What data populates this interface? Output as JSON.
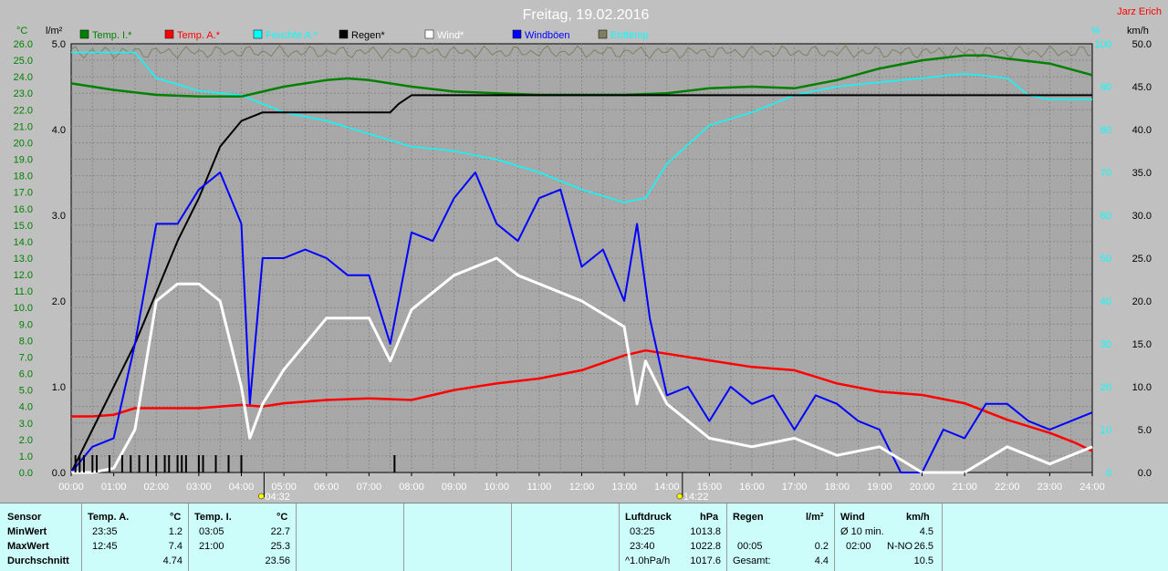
{
  "title": "Freitag, 19.02.2016",
  "author": "Jarz Erich",
  "legend": [
    {
      "label": "Temp. I.*",
      "color": "#008000"
    },
    {
      "label": "Temp. A.*",
      "color": "#ff0000"
    },
    {
      "label": "Feuchte A.*",
      "color": "#00ffff"
    },
    {
      "label": "Regen*",
      "color": "#000000"
    },
    {
      "label": "Wind*",
      "color": "#ffffff"
    },
    {
      "label": "Windböen",
      "color": "#0000ff"
    },
    {
      "label": "Erdtemp",
      "color": "#808060",
      "text_color": "#00ffff"
    }
  ],
  "axes": {
    "temp_unit": "°C",
    "rain_unit": "l/m²",
    "hum_unit": "%",
    "wind_unit": "km/h",
    "temp_ticks": [
      "0.0",
      "1.0",
      "2.0",
      "3.0",
      "4.0",
      "5.0",
      "6.0",
      "7.0",
      "8.0",
      "9.0",
      "10.0",
      "11.0",
      "12.0",
      "13.0",
      "14.0",
      "15.0",
      "16.0",
      "17.0",
      "18.0",
      "19.0",
      "20.0",
      "21.0",
      "22.0",
      "23.0",
      "24.0",
      "25.0",
      "26.0"
    ],
    "rain_ticks": [
      "0.0",
      "1.0",
      "2.0",
      "3.0",
      "4.0",
      "5.0"
    ],
    "hum_ticks": [
      "0",
      "10",
      "20",
      "30",
      "40",
      "50",
      "60",
      "70",
      "80",
      "90",
      "100"
    ],
    "wind_ticks": [
      "0.0",
      "5.0",
      "10.0",
      "15.0",
      "20.0",
      "25.0",
      "30.0",
      "35.0",
      "40.0",
      "45.0",
      "50.0"
    ],
    "x_ticks": [
      "00:00",
      "01:00",
      "02:00",
      "03:00",
      "04:00",
      "05:00",
      "06:00",
      "07:00",
      "08:00",
      "09:00",
      "10:00",
      "11:00",
      "12:00",
      "13:00",
      "14:00",
      "15:00",
      "16:00",
      "17:00",
      "18:00",
      "19:00",
      "20:00",
      "21:00",
      "22:00",
      "23:00",
      "24:00"
    ],
    "sunrise": "04:32",
    "sunset": "14:22"
  },
  "chart_data": {
    "type": "line",
    "x_unit": "hours",
    "temp_range": [
      0,
      26
    ],
    "rain_range": [
      0,
      5
    ],
    "hum_range": [
      0,
      100
    ],
    "wind_range": [
      0,
      50
    ],
    "series": [
      {
        "name": "Temp. I.*",
        "axis": "temp",
        "x": [
          0,
          0.5,
          1,
          2,
          3,
          4,
          4.5,
          5,
          6,
          6.5,
          7,
          8,
          9,
          10,
          11,
          12,
          13,
          14,
          15,
          16,
          17,
          18,
          19,
          20,
          21,
          21.5,
          22,
          23,
          24
        ],
        "y": [
          23.6,
          23.4,
          23.2,
          22.9,
          22.8,
          22.8,
          23.1,
          23.4,
          23.8,
          23.9,
          23.8,
          23.4,
          23.1,
          23.0,
          22.9,
          22.9,
          22.9,
          23.0,
          23.3,
          23.4,
          23.3,
          23.8,
          24.5,
          25.0,
          25.3,
          25.3,
          25.1,
          24.8,
          24.1
        ]
      },
      {
        "name": "Temp. A.*",
        "axis": "temp",
        "x": [
          0,
          0.5,
          1,
          1.5,
          2,
          3,
          4,
          4.5,
          5,
          6,
          7,
          8,
          9,
          10,
          11,
          12,
          13,
          13.5,
          14,
          15,
          16,
          17,
          18,
          19,
          20,
          21,
          22,
          23,
          23.6,
          24
        ],
        "y": [
          3.4,
          3.4,
          3.5,
          3.9,
          3.9,
          3.9,
          4.1,
          4.0,
          4.2,
          4.4,
          4.5,
          4.4,
          5.0,
          5.4,
          5.7,
          6.2,
          7.1,
          7.4,
          7.2,
          6.8,
          6.4,
          6.2,
          5.4,
          4.9,
          4.7,
          4.2,
          3.2,
          2.4,
          1.8,
          1.3
        ]
      },
      {
        "name": "Feuchte A.*",
        "axis": "hum",
        "x": [
          0,
          0.5,
          1,
          1.5,
          2,
          3,
          4,
          5,
          6,
          7,
          8,
          9,
          10,
          11,
          12,
          13,
          13.5,
          14,
          15,
          16,
          17,
          18,
          19,
          20,
          21,
          22,
          22.5,
          23,
          24
        ],
        "y": [
          98,
          98,
          98,
          98,
          92,
          89,
          88,
          84,
          82,
          79,
          76,
          75,
          73,
          70,
          66,
          63,
          64,
          72,
          81,
          84,
          88,
          90,
          91,
          92,
          93,
          92,
          88,
          87,
          87
        ]
      },
      {
        "name": "Regen*",
        "axis": "rain",
        "x": [
          0,
          0.5,
          1,
          1.5,
          2,
          2.5,
          3,
          3.5,
          4,
          4.5,
          5,
          6,
          7,
          7.5,
          7.7,
          8,
          9,
          10,
          11,
          12,
          13,
          14,
          15,
          16,
          17,
          18,
          19,
          20,
          21,
          22,
          23,
          24
        ],
        "y": [
          0,
          0.5,
          1.0,
          1.5,
          2.1,
          2.7,
          3.2,
          3.8,
          4.1,
          4.2,
          4.2,
          4.2,
          4.2,
          4.2,
          4.3,
          4.4,
          4.4,
          4.4,
          4.4,
          4.4,
          4.4,
          4.4,
          4.4,
          4.4,
          4.4,
          4.4,
          4.4,
          4.4,
          4.4,
          4.4,
          4.4,
          4.4
        ]
      },
      {
        "name": "Wind*",
        "axis": "wind",
        "x": [
          0,
          0.5,
          1,
          1.5,
          2,
          2.5,
          3,
          3.5,
          4,
          4.2,
          4.5,
          5,
          6,
          7,
          7.5,
          8,
          9,
          10,
          10.5,
          11,
          12,
          13,
          13.3,
          13.5,
          14,
          15,
          16,
          17,
          18,
          19,
          20,
          21,
          22,
          23,
          24
        ],
        "y": [
          0,
          0,
          0.5,
          5,
          20,
          22,
          22,
          20,
          10,
          4,
          8,
          12,
          18,
          18,
          13,
          19,
          23,
          25,
          23,
          22,
          20,
          17,
          8,
          13,
          8,
          4,
          3,
          4,
          2,
          3,
          0,
          0,
          3,
          1,
          3
        ]
      },
      {
        "name": "Windböen",
        "axis": "wind",
        "x": [
          0,
          0.5,
          1,
          1.5,
          2,
          2.5,
          3,
          3.5,
          4,
          4.2,
          4.5,
          5,
          5.5,
          6,
          6.5,
          7,
          7.5,
          8,
          8.5,
          9,
          9.5,
          10,
          10.5,
          11,
          11.5,
          12,
          12.5,
          13,
          13.3,
          13.6,
          14,
          14.5,
          15,
          15.5,
          16,
          16.5,
          17,
          17.5,
          18,
          18.5,
          19,
          19.5,
          20,
          20.5,
          21,
          21.5,
          22,
          22.5,
          23,
          23.5,
          24
        ],
        "y": [
          0,
          3,
          4,
          15,
          29,
          29,
          33,
          35,
          29,
          8,
          25,
          25,
          26,
          25,
          23,
          23,
          15,
          28,
          27,
          32,
          35,
          29,
          27,
          32,
          33,
          24,
          26,
          20,
          29,
          18,
          9,
          10,
          6,
          10,
          8,
          9,
          5,
          9,
          8,
          6,
          5,
          0,
          0,
          5,
          4,
          8,
          8,
          6,
          5,
          6,
          7
        ]
      }
    ],
    "rain_events_hours": [
      0.1,
      0.2,
      0.3,
      0.5,
      0.6,
      0.9,
      1.2,
      1.4,
      1.6,
      1.8,
      2.0,
      2.2,
      2.3,
      2.5,
      2.6,
      2.7,
      3.0,
      3.1,
      3.4,
      3.7,
      4.0,
      7.6
    ],
    "erdtemp_present": true
  },
  "stats": {
    "sensor": {
      "header": "Sensor",
      "rows": [
        "MinWert",
        "MaxWert",
        "Durchschnitt"
      ]
    },
    "temp_a": {
      "header": "Temp. A.",
      "unit": "°C",
      "rows": [
        [
          "23:35",
          "1.2"
        ],
        [
          "12:45",
          "7.4"
        ],
        [
          "",
          "4.74"
        ]
      ]
    },
    "temp_i": {
      "header": "Temp. I.",
      "unit": "°C",
      "rows": [
        [
          "03:05",
          "22.7"
        ],
        [
          "21:00",
          "25.3"
        ],
        [
          "",
          "23.56"
        ]
      ]
    },
    "luftdruck": {
      "header": "Luftdruck",
      "unit": "hPa",
      "rows": [
        [
          "03:25",
          "1013.8"
        ],
        [
          "23:40",
          "1022.8"
        ],
        [
          "^1.0hPa/h",
          "1017.6"
        ]
      ]
    },
    "regen": {
      "header": "Regen",
      "unit": "l/m²",
      "rows": [
        [
          "",
          ""
        ],
        [
          "00:05",
          "0.2"
        ],
        [
          "Gesamt:",
          "4.4"
        ]
      ]
    },
    "wind": {
      "header": "Wind",
      "unit": "km/h",
      "rows": [
        [
          "Ø 10 min.",
          "",
          "4.5"
        ],
        [
          "02:00",
          "N-NO",
          "26.5"
        ],
        [
          "",
          "",
          "10.5"
        ]
      ]
    }
  }
}
